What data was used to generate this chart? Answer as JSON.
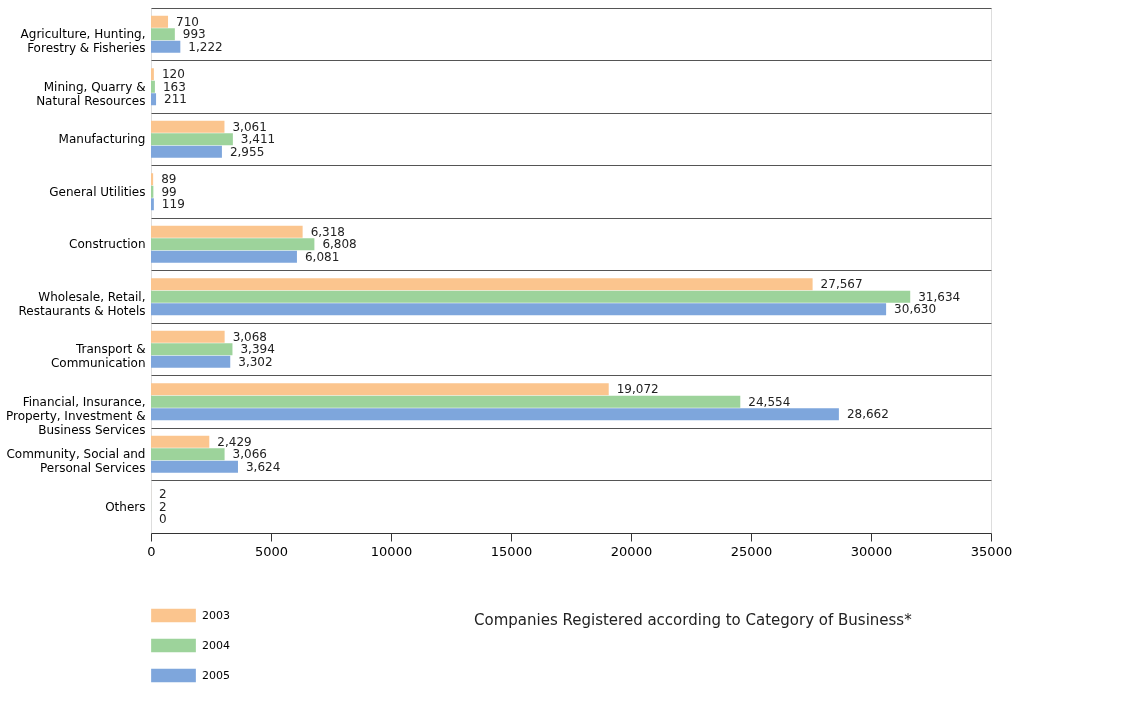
{
  "chart_data": {
    "type": "bar",
    "orientation": "horizontal",
    "title": "Companies Registered according to Category of Business*",
    "categories": [
      "Agriculture, Hunting,\nForestry & Fisheries",
      "Mining, Quarry &\nNatural Resources",
      "Manufacturing",
      "General Utilities",
      "Construction",
      "Wholesale, Retail,\nRestaurants & Hotels",
      "Transport &\nCommunication",
      "Financial, Insurance,\nProperty, Investment &\nBusiness Services",
      "Community, Social and\nPersonal Services",
      "Others"
    ],
    "series": [
      {
        "name": "2003",
        "color": "#fbc58e",
        "values": [
          710,
          120,
          3061,
          89,
          6318,
          27567,
          3068,
          19072,
          2429,
          2
        ]
      },
      {
        "name": "2004",
        "color": "#9dd39b",
        "values": [
          993,
          163,
          3411,
          99,
          6808,
          31634,
          3394,
          24554,
          3066,
          2
        ]
      },
      {
        "name": "2005",
        "color": "#7ea6dc",
        "values": [
          1222,
          211,
          2955,
          119,
          6081,
          30630,
          3302,
          28662,
          3624,
          0
        ]
      }
    ],
    "xlim": [
      0,
      35000
    ],
    "xticks": [
      0,
      5000,
      10000,
      15000,
      20000,
      25000,
      30000,
      35000
    ],
    "value_labels": [
      [
        "710",
        "120",
        "3,061",
        "89",
        "6,318",
        "27,567",
        "3,068",
        "19,072",
        "2,429",
        "2"
      ],
      [
        "993",
        "163",
        "3,411",
        "99",
        "6,808",
        "31,634",
        "3,394",
        "24,554",
        "3,066",
        "2"
      ],
      [
        "1,222",
        "211",
        "2,955",
        "119",
        "6,081",
        "30,630",
        "3,302",
        "28,662",
        "3,624",
        "0"
      ]
    ],
    "grid": "y",
    "legend": "bottom left"
  }
}
